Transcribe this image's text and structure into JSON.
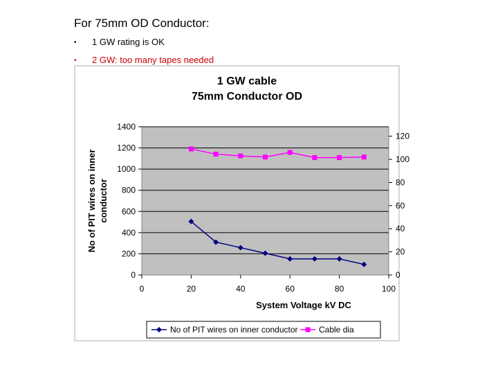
{
  "slide": {
    "title": "For 75mm OD Conductor:",
    "bullets": [
      {
        "marker": "•",
        "text": "1 GW rating is OK"
      },
      {
        "marker": "•",
        "text": "2 GW: too many tapes needed"
      }
    ]
  },
  "chart_data": {
    "type": "line",
    "title_lines": [
      "1 GW cable",
      "75mm Conductor OD"
    ],
    "xlabel": "System Voltage kV DC",
    "ylabel_lines": [
      "No of PIT wires on inner",
      "conductor"
    ],
    "y2label": "",
    "xlim": [
      0,
      100
    ],
    "xticks": [
      "0",
      "20",
      "40",
      "60",
      "80",
      "100"
    ],
    "ylim": [
      0,
      1400
    ],
    "yticks": [
      "0",
      "200",
      "400",
      "600",
      "800",
      "1000",
      "1200",
      "1400"
    ],
    "y2lim": [
      0,
      130
    ],
    "y2ticks": [
      "0",
      "20",
      "40",
      "60",
      "80",
      "100",
      "120"
    ],
    "grid": "horizontal",
    "legend_position": "bottom",
    "x": [
      20,
      30,
      40,
      50,
      60,
      70,
      80,
      90
    ],
    "series": [
      {
        "name": "No of PIT wires on inner conductor",
        "axis": "left",
        "marker": "diamond",
        "color": "#000080",
        "values": [
          505,
          310,
          258,
          205,
          152,
          152,
          152,
          100
        ]
      },
      {
        "name": "Cable dia",
        "axis": "right",
        "marker": "square",
        "color": "#ff00ff",
        "values": [
          109,
          104.5,
          103,
          102,
          106,
          101.5,
          101.5,
          102
        ]
      }
    ]
  }
}
